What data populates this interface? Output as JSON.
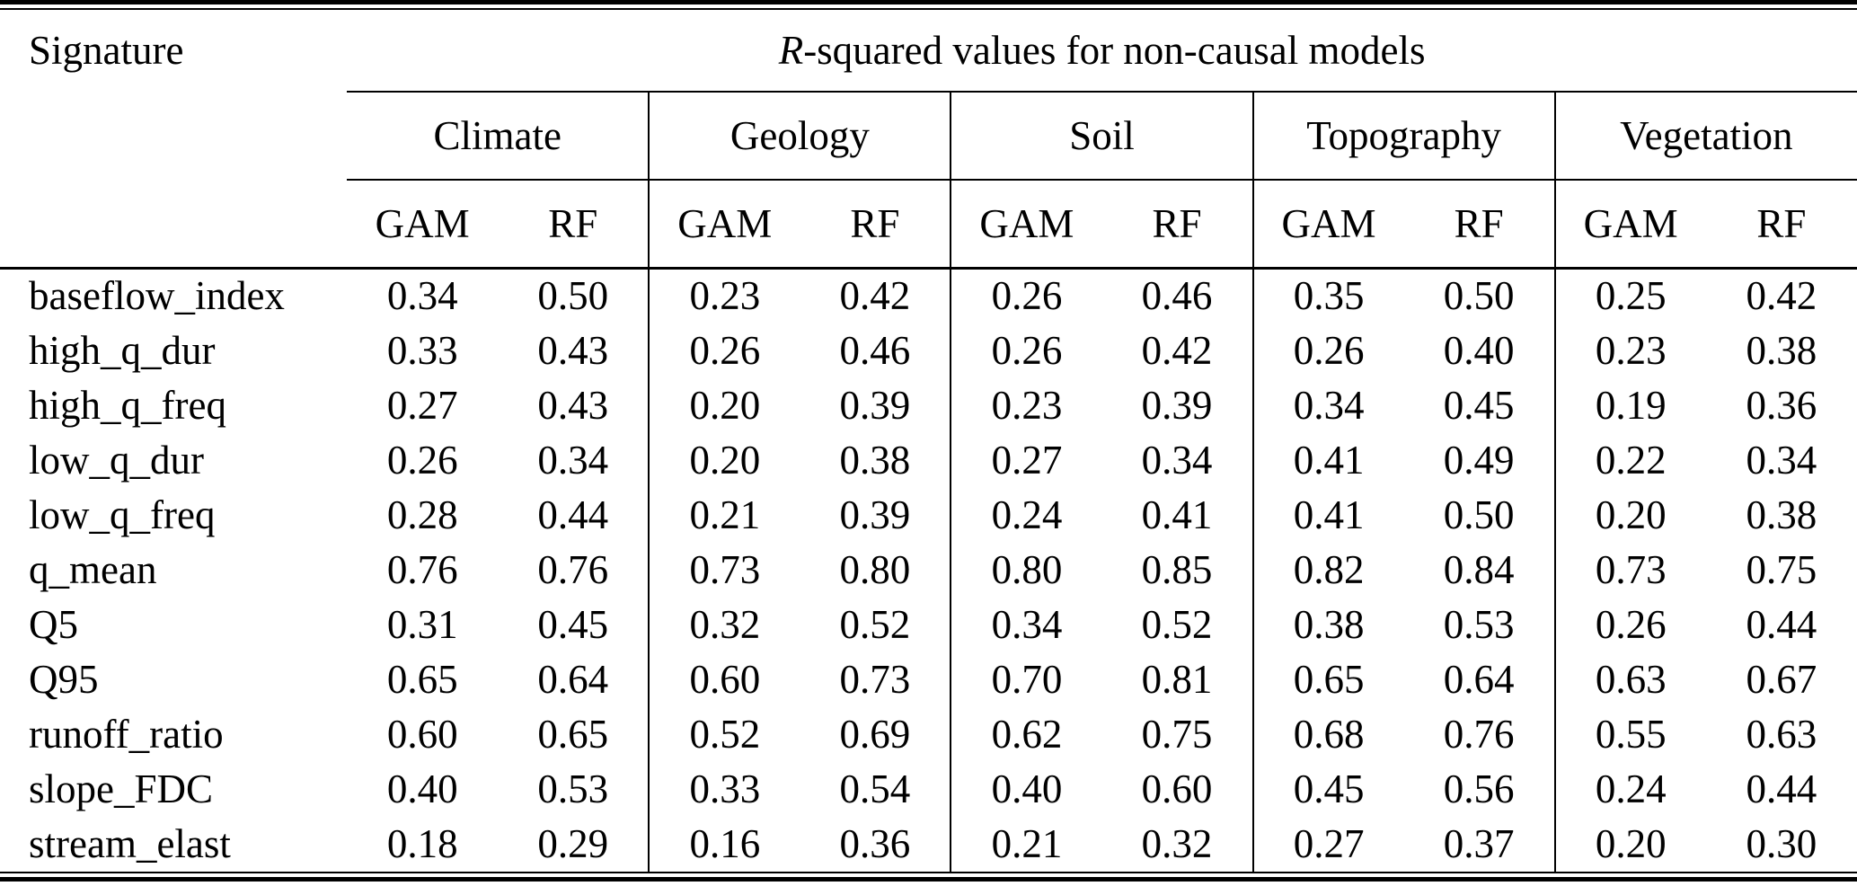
{
  "table": {
    "signature_header": "Signature",
    "r_italic": "R",
    "r_suffix": "-squared values for non-causal models",
    "groups": [
      {
        "label": "Climate"
      },
      {
        "label": "Geology"
      },
      {
        "label": "Soil"
      },
      {
        "label": "Topography"
      },
      {
        "label": "Vegetation"
      }
    ],
    "models": [
      "GAM",
      "RF"
    ],
    "rows": [
      {
        "signature": "baseflow_index",
        "values": [
          "0.34",
          "0.50",
          "0.23",
          "0.42",
          "0.26",
          "0.46",
          "0.35",
          "0.50",
          "0.25",
          "0.42"
        ]
      },
      {
        "signature": "high_q_dur",
        "values": [
          "0.33",
          "0.43",
          "0.26",
          "0.46",
          "0.26",
          "0.42",
          "0.26",
          "0.40",
          "0.23",
          "0.38"
        ]
      },
      {
        "signature": "high_q_freq",
        "values": [
          "0.27",
          "0.43",
          "0.20",
          "0.39",
          "0.23",
          "0.39",
          "0.34",
          "0.45",
          "0.19",
          "0.36"
        ]
      },
      {
        "signature": "low_q_dur",
        "values": [
          "0.26",
          "0.34",
          "0.20",
          "0.38",
          "0.27",
          "0.34",
          "0.41",
          "0.49",
          "0.22",
          "0.34"
        ]
      },
      {
        "signature": "low_q_freq",
        "values": [
          "0.28",
          "0.44",
          "0.21",
          "0.39",
          "0.24",
          "0.41",
          "0.41",
          "0.50",
          "0.20",
          "0.38"
        ]
      },
      {
        "signature": "q_mean",
        "values": [
          "0.76",
          "0.76",
          "0.73",
          "0.80",
          "0.80",
          "0.85",
          "0.82",
          "0.84",
          "0.73",
          "0.75"
        ]
      },
      {
        "signature": "Q5",
        "values": [
          "0.31",
          "0.45",
          "0.32",
          "0.52",
          "0.34",
          "0.52",
          "0.38",
          "0.53",
          "0.26",
          "0.44"
        ]
      },
      {
        "signature": "Q95",
        "values": [
          "0.65",
          "0.64",
          "0.60",
          "0.73",
          "0.70",
          "0.81",
          "0.65",
          "0.64",
          "0.63",
          "0.67"
        ]
      },
      {
        "signature": "runoff_ratio",
        "values": [
          "0.60",
          "0.65",
          "0.52",
          "0.69",
          "0.62",
          "0.75",
          "0.68",
          "0.76",
          "0.55",
          "0.63"
        ]
      },
      {
        "signature": "slope_FDC",
        "values": [
          "0.40",
          "0.53",
          "0.33",
          "0.54",
          "0.40",
          "0.60",
          "0.45",
          "0.56",
          "0.24",
          "0.44"
        ]
      },
      {
        "signature": "stream_elast",
        "values": [
          "0.18",
          "0.29",
          "0.16",
          "0.36",
          "0.21",
          "0.32",
          "0.27",
          "0.37",
          "0.20",
          "0.30"
        ]
      }
    ],
    "ink_color": "#000000",
    "background_color": "#ffffff"
  }
}
